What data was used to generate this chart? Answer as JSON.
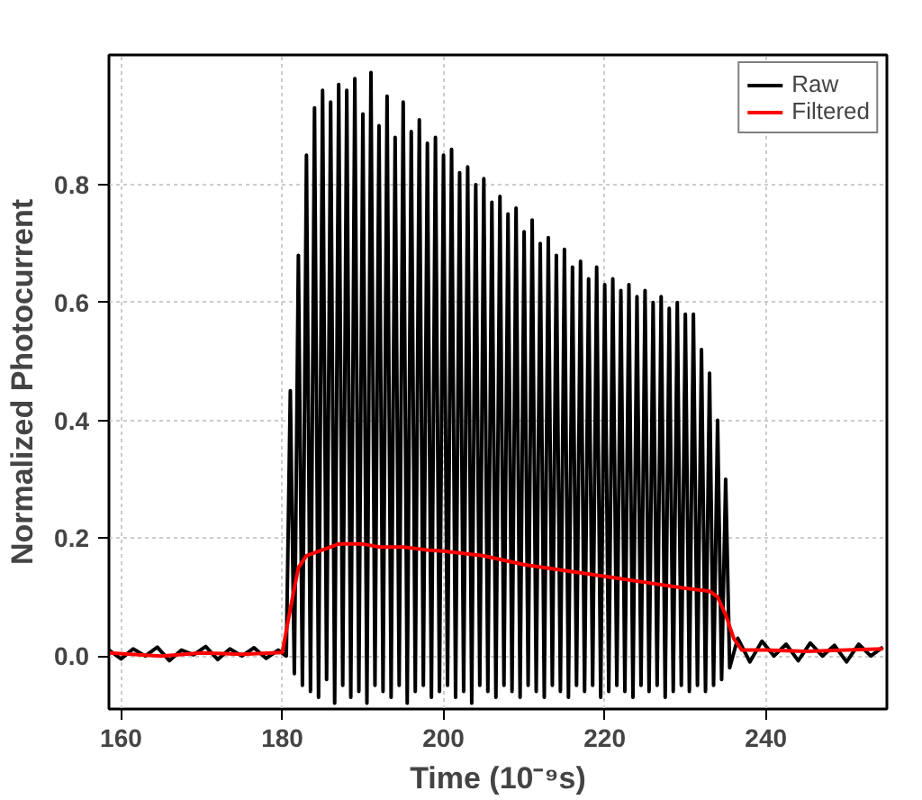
{
  "chart_data": {
    "type": "line",
    "xlabel": "Time (10⁻⁹s)",
    "ylabel": "Normalized Photocurrent",
    "xlim": [
      158.5,
      255
    ],
    "ylim": [
      -0.09,
      1.02
    ],
    "xticks": [
      160,
      180,
      200,
      220,
      240
    ],
    "yticks": [
      {
        "value": 0,
        "label": "0.0"
      },
      {
        "value": 0.2,
        "label": "0.2"
      },
      {
        "value": 0.4,
        "label": "0.4"
      },
      {
        "value": 0.6,
        "label": "0.6"
      },
      {
        "value": 0.8,
        "label": "0.8"
      }
    ],
    "grid": true,
    "legend": "top right",
    "line_style": "solid",
    "marker": "none",
    "series": [
      {
        "name": "Raw",
        "color": "#000000",
        "x": [
          158.5,
          160,
          161.5,
          163,
          164.5,
          166,
          167.5,
          169,
          170.5,
          172,
          173.5,
          175,
          176.5,
          178,
          179.5,
          180.5,
          181,
          181.5,
          182,
          182.5,
          183,
          183.5,
          184,
          184.5,
          185,
          185.5,
          186,
          186.5,
          187,
          187.5,
          188,
          188.5,
          189,
          189.5,
          190,
          190.5,
          191,
          191.5,
          192,
          192.5,
          193,
          193.5,
          194,
          194.5,
          195,
          195.5,
          196,
          196.5,
          197,
          197.5,
          198,
          198.5,
          199,
          199.5,
          200,
          200.5,
          201,
          201.5,
          202,
          202.5,
          203,
          203.5,
          204,
          204.5,
          205,
          205.5,
          206,
          206.5,
          207,
          207.5,
          208,
          208.5,
          209,
          209.5,
          210,
          210.5,
          211,
          211.5,
          212,
          212.5,
          213,
          213.5,
          214,
          214.5,
          215,
          215.5,
          216,
          216.5,
          217,
          217.5,
          218,
          218.5,
          219,
          219.5,
          220,
          220.5,
          221,
          221.5,
          222,
          222.5,
          223,
          223.5,
          224,
          224.5,
          225,
          225.5,
          226,
          226.5,
          227,
          227.5,
          228,
          228.5,
          229,
          229.5,
          230,
          230.5,
          231,
          231.5,
          232,
          232.5,
          233,
          233.5,
          234,
          234.5,
          235,
          235.5,
          236.5,
          238,
          239.5,
          241,
          242.5,
          244,
          245.5,
          247,
          248.5,
          250,
          251.5,
          253,
          254.5
        ],
        "values": [
          0.01,
          -0.005,
          0.012,
          0.0,
          0.015,
          -0.008,
          0.01,
          0.002,
          0.016,
          -0.006,
          0.012,
          0.0,
          0.014,
          -0.004,
          0.01,
          0.0,
          0.45,
          -0.03,
          0.68,
          -0.05,
          0.85,
          -0.06,
          0.93,
          -0.07,
          0.96,
          -0.04,
          0.94,
          -0.08,
          0.97,
          -0.05,
          0.96,
          -0.07,
          0.98,
          -0.06,
          0.92,
          -0.08,
          0.99,
          -0.05,
          0.9,
          -0.06,
          0.95,
          -0.07,
          0.88,
          -0.05,
          0.94,
          -0.08,
          0.89,
          -0.06,
          0.91,
          -0.05,
          0.87,
          -0.07,
          0.88,
          -0.06,
          0.85,
          -0.05,
          0.86,
          -0.07,
          0.82,
          -0.06,
          0.83,
          -0.08,
          0.8,
          -0.05,
          0.81,
          -0.06,
          0.77,
          -0.07,
          0.78,
          -0.05,
          0.75,
          -0.06,
          0.76,
          -0.07,
          0.72,
          -0.05,
          0.74,
          -0.06,
          0.7,
          -0.07,
          0.71,
          -0.05,
          0.68,
          -0.06,
          0.69,
          -0.07,
          0.66,
          -0.05,
          0.67,
          -0.06,
          0.64,
          -0.05,
          0.66,
          -0.07,
          0.63,
          -0.06,
          0.64,
          -0.05,
          0.62,
          -0.06,
          0.63,
          -0.07,
          0.61,
          -0.05,
          0.62,
          -0.06,
          0.6,
          -0.05,
          0.61,
          -0.07,
          0.59,
          -0.06,
          0.6,
          -0.05,
          0.58,
          -0.06,
          0.58,
          -0.05,
          0.52,
          -0.06,
          0.48,
          -0.05,
          0.4,
          -0.04,
          0.3,
          -0.02,
          0.03,
          -0.01,
          0.025,
          0.0,
          0.02,
          -0.008,
          0.022,
          0.0,
          0.018,
          -0.01,
          0.02,
          0.0,
          0.015
        ]
      },
      {
        "name": "Filtered",
        "color": "#ff0000",
        "x": [
          158.5,
          165,
          170,
          175,
          180,
          181,
          182,
          183,
          185,
          187,
          190,
          192,
          195,
          198,
          200,
          205,
          210,
          215,
          220,
          225,
          230,
          233,
          234,
          235,
          236,
          237,
          240,
          245,
          250,
          254.5
        ],
        "values": [
          0.005,
          0.0,
          0.005,
          0.003,
          0.006,
          0.08,
          0.15,
          0.17,
          0.18,
          0.19,
          0.19,
          0.185,
          0.185,
          0.18,
          0.178,
          0.17,
          0.155,
          0.145,
          0.135,
          0.125,
          0.115,
          0.11,
          0.1,
          0.07,
          0.03,
          0.01,
          0.01,
          0.008,
          0.01,
          0.012
        ]
      }
    ]
  }
}
